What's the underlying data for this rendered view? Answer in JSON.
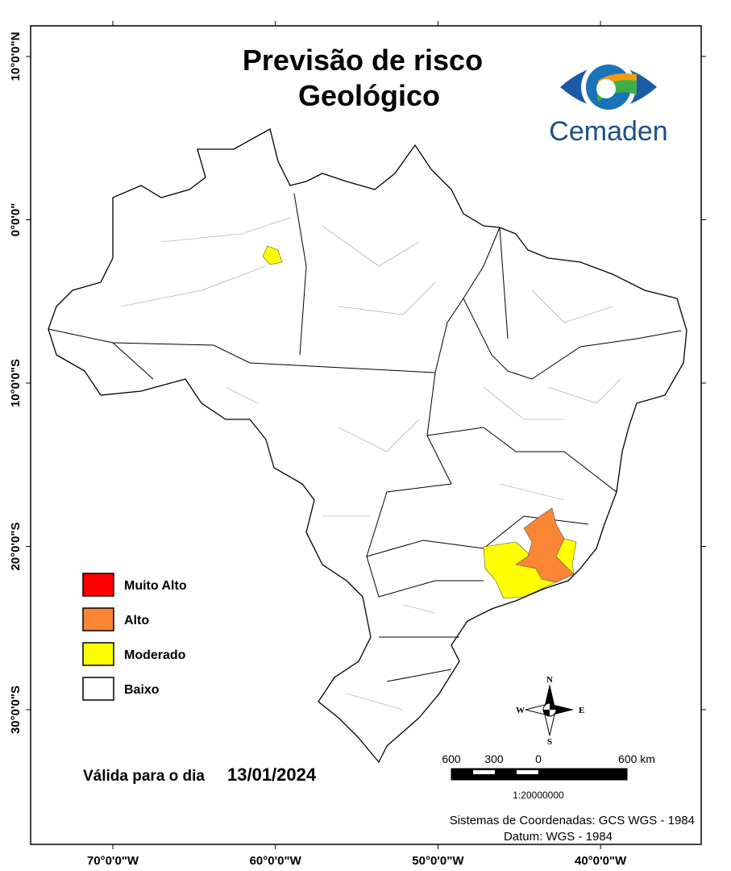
{
  "header": {
    "title_line1": "Previsão de risco",
    "title_line2": "Geológico",
    "logo": "Cemaden"
  },
  "latitudes": [
    "10°0'0\"N",
    "0°0'0\"",
    "10°0'0\"S",
    "20°0'0\"S",
    "30°0'0\"S"
  ],
  "longitudes": [
    "70°0'0\"W",
    "60°0'0\"W",
    "50°0'0\"W",
    "40°0'0\"W"
  ],
  "legend": [
    {
      "label": "Muito Alto",
      "color": "#ff0000"
    },
    {
      "label": "Alto",
      "color": "#f98535"
    },
    {
      "label": "Moderado",
      "color": "#ffff00"
    },
    {
      "label": "Baixo",
      "color": "#ffffff"
    }
  ],
  "validity": {
    "label": "Válida para o dia",
    "date": "13/01/2024"
  },
  "compass": {
    "n": "N",
    "s": "S",
    "e": "E",
    "w": "W"
  },
  "scale": {
    "labels": [
      "600",
      "300",
      "0",
      "600 km"
    ],
    "ratio": "1:20000000"
  },
  "footer": {
    "coordinates": "Sistemas de Coordenadas: GCS WGS - 1984",
    "datum": "Datum: WGS - 1984"
  }
}
